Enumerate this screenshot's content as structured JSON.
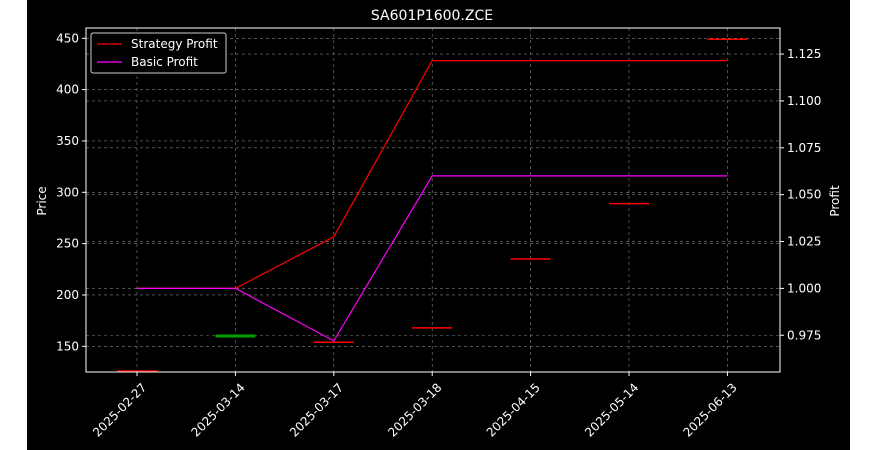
{
  "chart_data": {
    "type": "line",
    "title": "SA601P1600.ZCE",
    "xlabel": "",
    "ylabel_left": "Price",
    "ylabel_right": "Profit",
    "categories": [
      "2025-02-27",
      "2025-03-14",
      "2025-03-17",
      "2025-03-18",
      "2025-04-15",
      "2025-05-14",
      "2025-06-13"
    ],
    "y_left": {
      "lim": [
        125,
        460
      ],
      "ticks": [
        150,
        200,
        250,
        300,
        350,
        400,
        450
      ]
    },
    "y_right": {
      "lim": [
        0.9554,
        1.1389
      ],
      "ticks": [
        0.975,
        1.0,
        1.025,
        1.05,
        1.075,
        1.1,
        1.125
      ]
    },
    "grid": true,
    "legend": {
      "placement": "top-left",
      "entries": [
        "Strategy Profit",
        "Basic Profit"
      ]
    },
    "series": [
      {
        "name": "Strategy Profit",
        "axis": "right",
        "color": "#ff0000",
        "values": [
          1.0,
          1.0,
          1.0275,
          1.1215,
          1.1215,
          1.1215,
          1.1215
        ]
      },
      {
        "name": "Basic Profit",
        "axis": "right",
        "color": "#ff00ff",
        "values": [
          1.0,
          1.0,
          0.972,
          1.06,
          1.06,
          1.06,
          1.06
        ]
      }
    ],
    "price_marks": {
      "axis": "left",
      "values": [
        126,
        160,
        154,
        168,
        235,
        289,
        449
      ],
      "colors": [
        "#ff0000",
        "#00a000",
        "#ff0000",
        "#ff0000",
        "#ff0000",
        "#ff0000",
        "#ff0000"
      ]
    }
  },
  "colors": {
    "background": "#000000",
    "axes": "#ffffff",
    "grid": "#808080"
  }
}
